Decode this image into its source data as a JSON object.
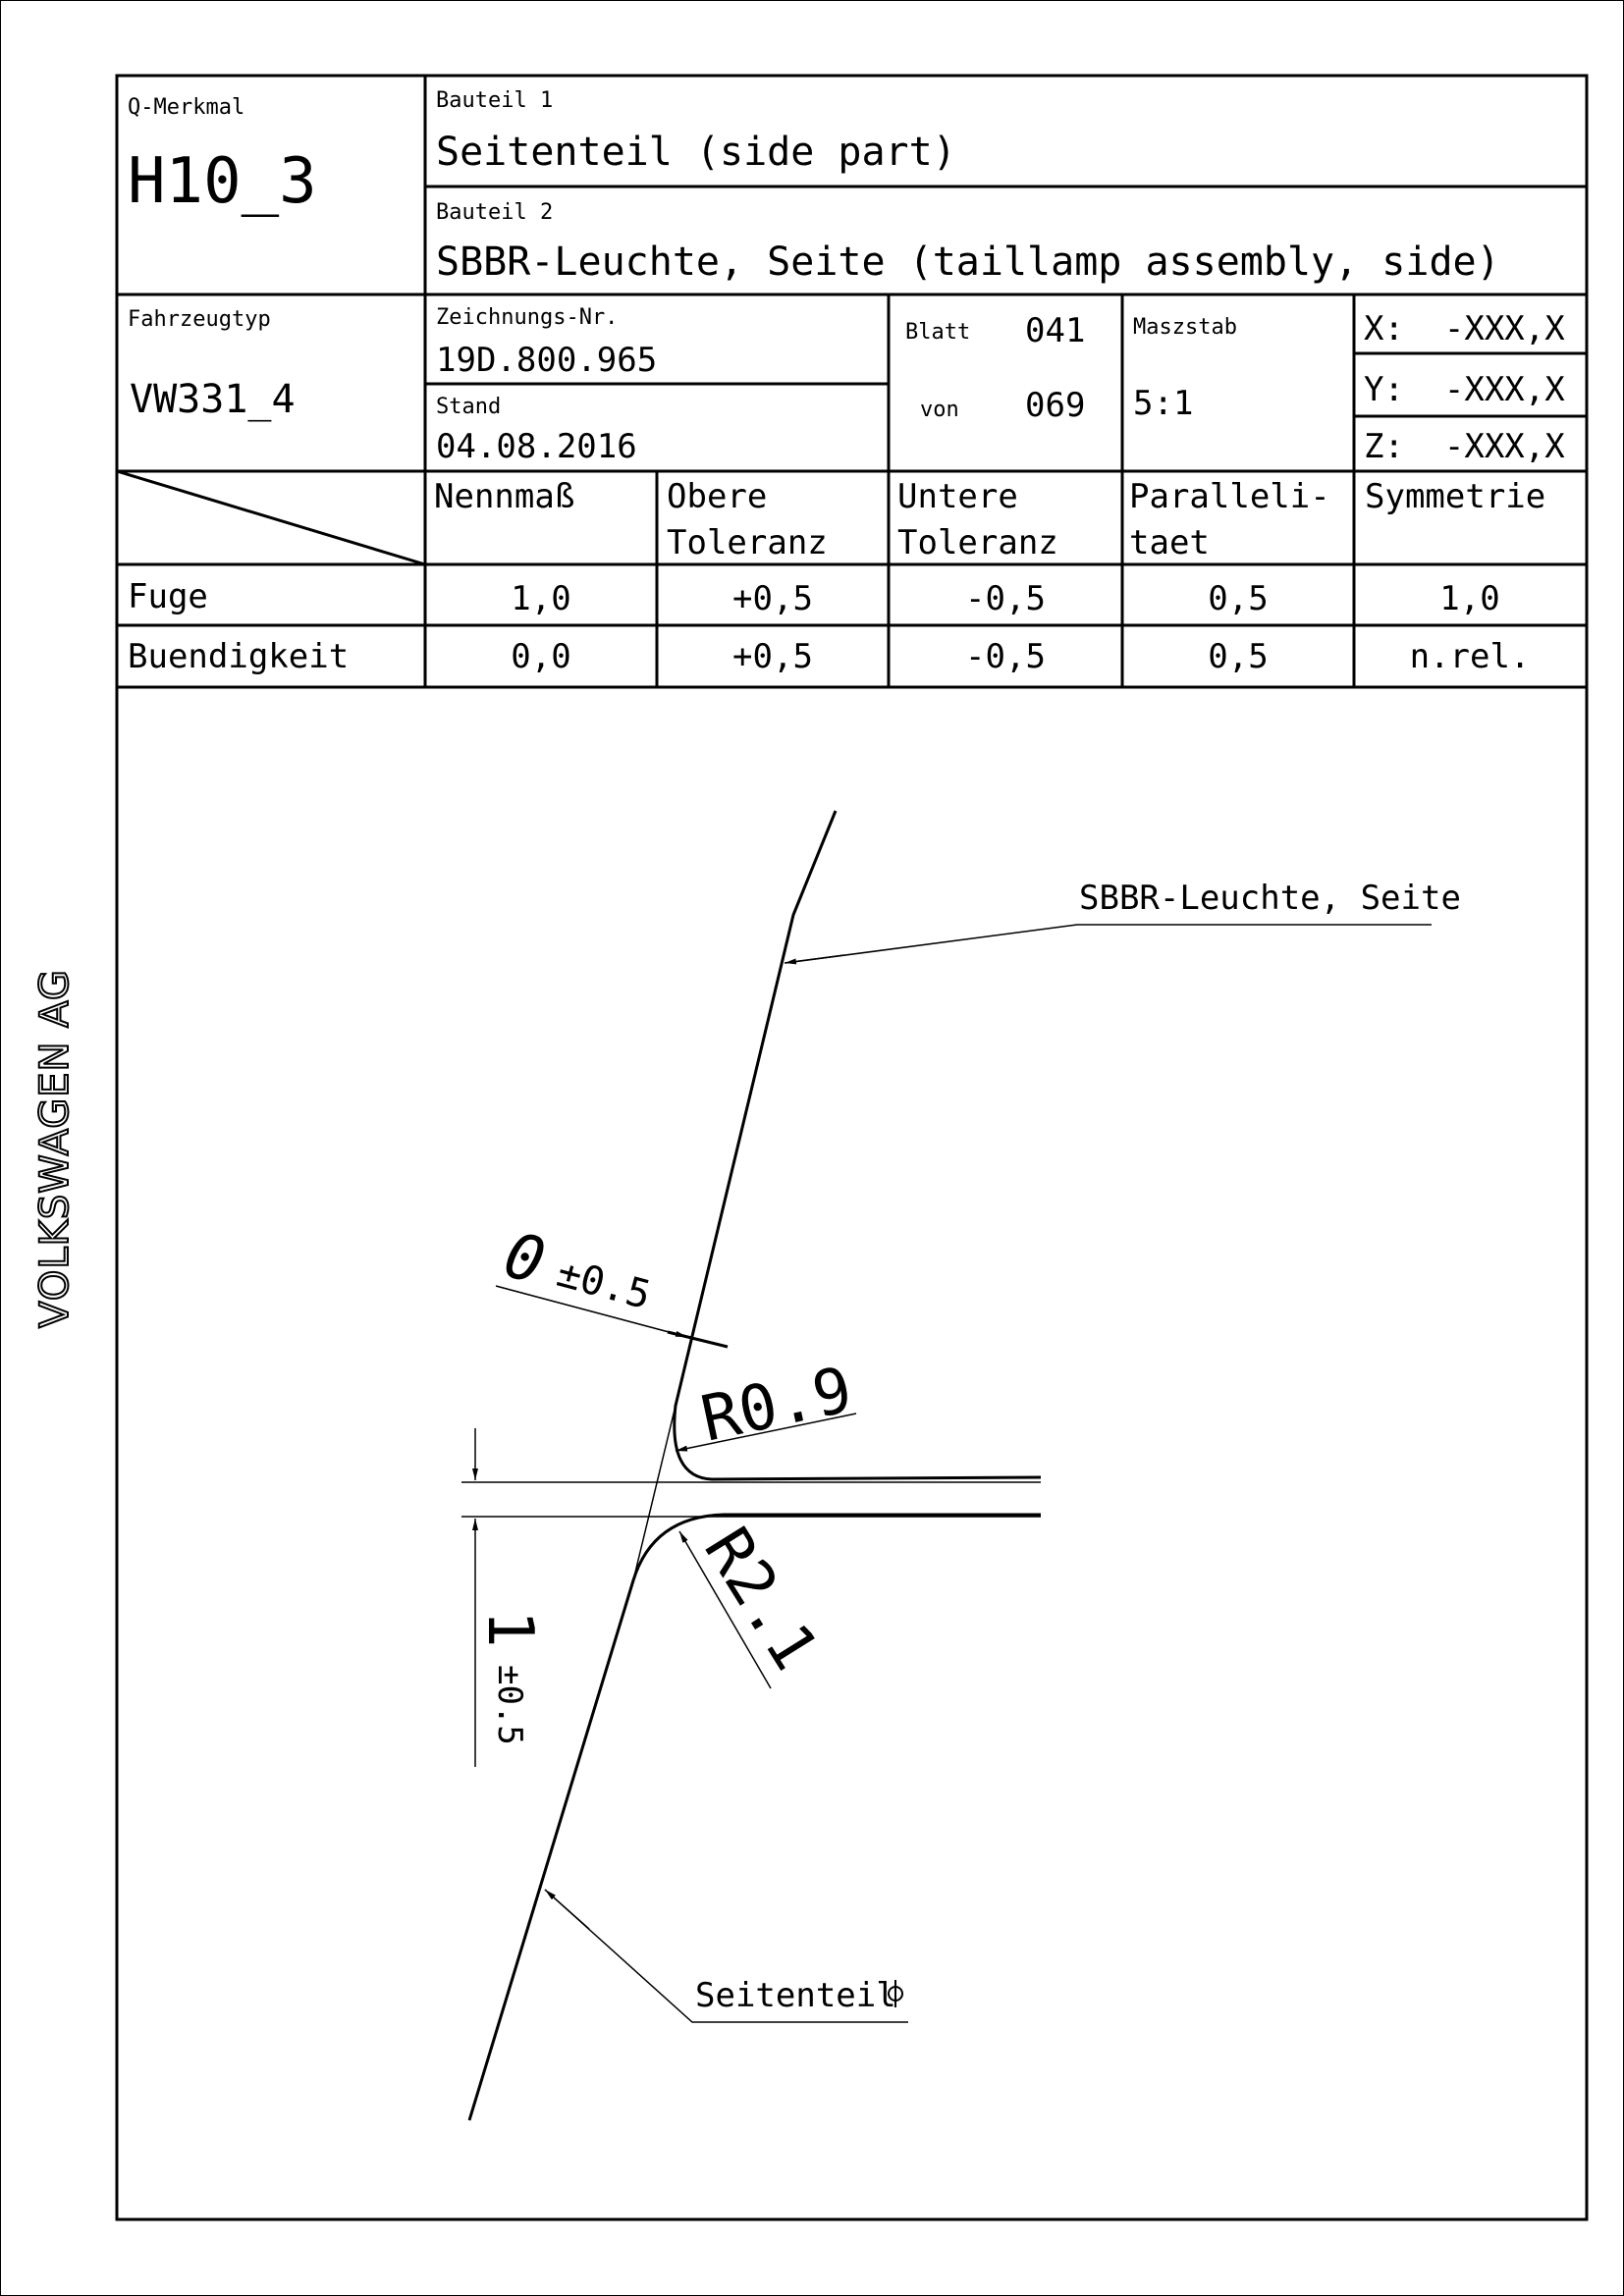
{
  "brand": "VOLKSWAGEN AG",
  "header": {
    "q_merkmal_label": "Q-Merkmal",
    "q_merkmal_value": "H10_3",
    "bauteil1_label": "Bauteil 1",
    "bauteil1_value": "Seitenteil (side part)",
    "bauteil2_label": "Bauteil 2",
    "bauteil2_value": "SBBR-Leuchte, Seite (taillamp assembly, side)",
    "fahrzeugtyp_label": "Fahrzeugtyp",
    "fahrzeugtyp_value": "VW331_4",
    "zeichnungs_label": "Zeichnungs-Nr.",
    "zeichnungs_value": "19D.800.965",
    "stand_label": "Stand",
    "stand_value": "04.08.2016",
    "blatt_label": "Blatt",
    "blatt_value": "041",
    "von_label": "von",
    "von_value": "069",
    "maszstab_label": "Maszstab",
    "maszstab_value": "5:1",
    "x_coord": "X:  -XXX,X",
    "y_coord": "Y:  -XXX,X",
    "z_coord": "Z:  -XXX,X"
  },
  "tolerance_table": {
    "columns": [
      "Nennmaß",
      "Obere",
      "Toleranz",
      "Untere",
      "Toleranz",
      "Paralleli-",
      "taet",
      "Symmetrie"
    ],
    "rows": [
      {
        "label": "Fuge",
        "values": [
          "1,0",
          "+0,5",
          "-0,5",
          "0,5",
          "1,0"
        ]
      },
      {
        "label": "Buendigkeit",
        "values": [
          "0,0",
          "+0,5",
          "-0,5",
          "0,5",
          "n.rel."
        ]
      }
    ]
  },
  "drawing": {
    "callout_upper": "SBBR-Leuchte, Seite",
    "callout_lower": "Seitenteil",
    "flush_value": "0",
    "flush_tol": "±0.5",
    "radius_small": "R0.9",
    "radius_large": "R2.1",
    "gap_value": "1",
    "gap_tol": "±0.5"
  }
}
